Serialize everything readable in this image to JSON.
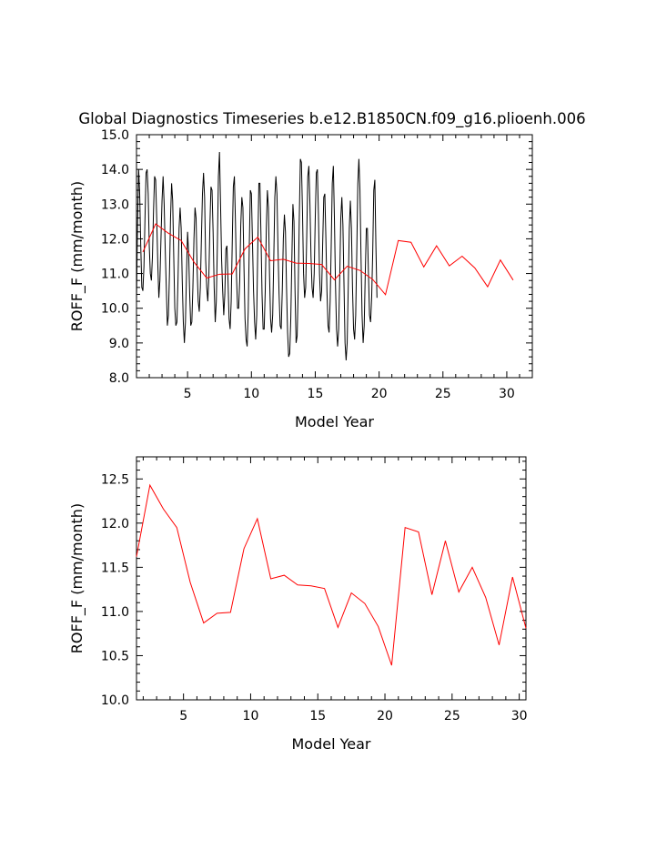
{
  "title": "Global Diagnostics Timeseries b.e12.B1850CN.f09_g16.plioenh.006",
  "colors": {
    "monthly": "#000000",
    "annual": "#ff0000"
  },
  "chart_data": [
    {
      "type": "line",
      "xlabel": "Model Year",
      "ylabel": "ROFF_F (mm/month)",
      "xlim": [
        1,
        32
      ],
      "ylim": [
        8.0,
        15.0
      ],
      "xticks": [
        5,
        10,
        15,
        20,
        25,
        30
      ],
      "xtick_labels": [
        "5",
        "10",
        "15",
        "20",
        "25",
        "30"
      ],
      "yticks": [
        8.0,
        9.0,
        10.0,
        11.0,
        12.0,
        13.0,
        14.0,
        15.0
      ],
      "ytick_labels": [
        "8.0",
        "9.0",
        "10.0",
        "11.0",
        "12.0",
        "13.0",
        "14.0",
        "15.0"
      ],
      "series": [
        {
          "kind": "monthly",
          "x_start": 1.0,
          "x_step": 0.0833333,
          "values": [
            10.2,
            12.5,
            14.0,
            13.3,
            11.8,
            10.6,
            10.5,
            11.2,
            12.6,
            13.9,
            14.0,
            13.3,
            11.8,
            11.0,
            10.8,
            11.5,
            12.8,
            13.8,
            13.7,
            12.6,
            11.3,
            10.3,
            10.8,
            12.0,
            13.1,
            13.8,
            13.0,
            11.7,
            10.6,
            9.5,
            9.8,
            11.0,
            12.6,
            13.6,
            13.1,
            11.5,
            10.0,
            9.5,
            9.6,
            10.8,
            12.3,
            12.9,
            12.3,
            10.8,
            9.6,
            9.0,
            9.6,
            11.0,
            12.2,
            11.6,
            10.4,
            9.5,
            9.6,
            10.6,
            12.0,
            12.9,
            12.6,
            11.1,
            10.2,
            9.9,
            10.6,
            12.0,
            13.3,
            13.9,
            13.2,
            11.4,
            10.6,
            10.2,
            10.9,
            12.4,
            13.5,
            13.4,
            12.2,
            10.6,
            9.6,
            10.2,
            11.8,
            13.8,
            14.5,
            13.0,
            11.4,
            10.5,
            9.8,
            10.4,
            11.7,
            11.8,
            10.8,
            9.7,
            9.4,
            10.2,
            11.9,
            13.5,
            13.8,
            12.5,
            10.9,
            10.0,
            10.0,
            10.8,
            12.4,
            13.2,
            12.9,
            11.2,
            9.7,
            9.1,
            8.9,
            9.9,
            11.8,
            13.4,
            13.3,
            11.9,
            10.5,
            9.6,
            9.1,
            9.8,
            11.8,
            13.6,
            13.6,
            12.1,
            10.4,
            9.4,
            9.4,
            10.5,
            12.3,
            13.4,
            12.9,
            11.0,
            9.7,
            9.3,
            9.8,
            11.4,
            13.2,
            13.8,
            13.3,
            11.7,
            10.4,
            9.5,
            9.4,
            10.5,
            12.0,
            12.7,
            12.2,
            10.6,
            9.3,
            8.6,
            8.7,
            9.7,
            11.4,
            13.0,
            12.5,
            10.5,
            9.0,
            9.2,
            10.6,
            12.6,
            14.3,
            14.2,
            12.8,
            11.0,
            10.3,
            10.6,
            12.1,
            13.8,
            14.1,
            13.0,
            11.5,
            10.6,
            10.3,
            11.0,
            12.6,
            13.9,
            14.0,
            12.7,
            11.0,
            10.2,
            10.5,
            11.9,
            13.2,
            13.3,
            12.0,
            10.5,
            9.5,
            9.3,
            10.2,
            11.8,
            13.6,
            14.1,
            12.6,
            10.7,
            9.4,
            8.9,
            9.4,
            10.9,
            12.6,
            13.2,
            12.4,
            10.7,
            9.0,
            8.5,
            9.0,
            10.6,
            12.3,
            13.1,
            12.3,
            10.6,
            9.4,
            9.1,
            9.8,
            11.6,
            13.6,
            14.3,
            13.4,
            11.5,
            9.8,
            9.0,
            9.5,
            11.0,
            12.3,
            12.3,
            11.0,
            9.8,
            9.6,
            10.3,
            11.6,
            13.4,
            13.7,
            11.8,
            10.3
          ]
        },
        {
          "kind": "annual",
          "x": [
            1.5,
            2.5,
            3.5,
            4.5,
            5.5,
            6.5,
            7.5,
            8.5,
            9.5,
            10.5,
            11.5,
            12.5,
            13.5,
            14.5,
            15.5,
            16.5,
            17.5,
            18.5,
            19.5,
            20.5,
            21.5,
            22.5,
            23.5,
            24.5,
            25.5,
            26.5,
            27.5,
            28.5,
            29.5,
            30.5
          ],
          "values": [
            11.62,
            12.43,
            12.16,
            11.95,
            11.33,
            10.87,
            10.98,
            10.99,
            11.71,
            12.05,
            11.37,
            11.41,
            11.3,
            11.29,
            11.26,
            10.82,
            11.21,
            11.09,
            10.83,
            10.39,
            11.95,
            11.9,
            11.19,
            11.8,
            11.22,
            11.5,
            11.16,
            10.62,
            11.39,
            10.81
          ]
        }
      ]
    },
    {
      "type": "line",
      "xlabel": "Model Year",
      "ylabel": "ROFF_F (mm/month)",
      "xlim": [
        1.5,
        30.5
      ],
      "ylim": [
        10.0,
        12.75
      ],
      "xticks": [
        5,
        10,
        15,
        20,
        25,
        30
      ],
      "xtick_labels": [
        "5",
        "10",
        "15",
        "20",
        "25",
        "30"
      ],
      "yticks": [
        10.0,
        10.5,
        11.0,
        11.5,
        12.0,
        12.5
      ],
      "ytick_labels": [
        "10.0",
        "10.5",
        "11.0",
        "11.5",
        "12.0",
        "12.5"
      ],
      "series": [
        {
          "kind": "annual",
          "x": [
            1.5,
            2.5,
            3.5,
            4.5,
            5.5,
            6.5,
            7.5,
            8.5,
            9.5,
            10.5,
            11.5,
            12.5,
            13.5,
            14.5,
            15.5,
            16.5,
            17.5,
            18.5,
            19.5,
            20.5,
            21.5,
            22.5,
            23.5,
            24.5,
            25.5,
            26.5,
            27.5,
            28.5,
            29.5,
            30.5
          ],
          "values": [
            11.62,
            12.43,
            12.16,
            11.95,
            11.33,
            10.87,
            10.98,
            10.99,
            11.71,
            12.05,
            11.37,
            11.41,
            11.3,
            11.29,
            11.26,
            10.82,
            11.21,
            11.09,
            10.83,
            10.39,
            11.95,
            11.9,
            11.19,
            11.8,
            11.22,
            11.5,
            11.16,
            10.62,
            11.39,
            10.81
          ]
        }
      ]
    }
  ]
}
